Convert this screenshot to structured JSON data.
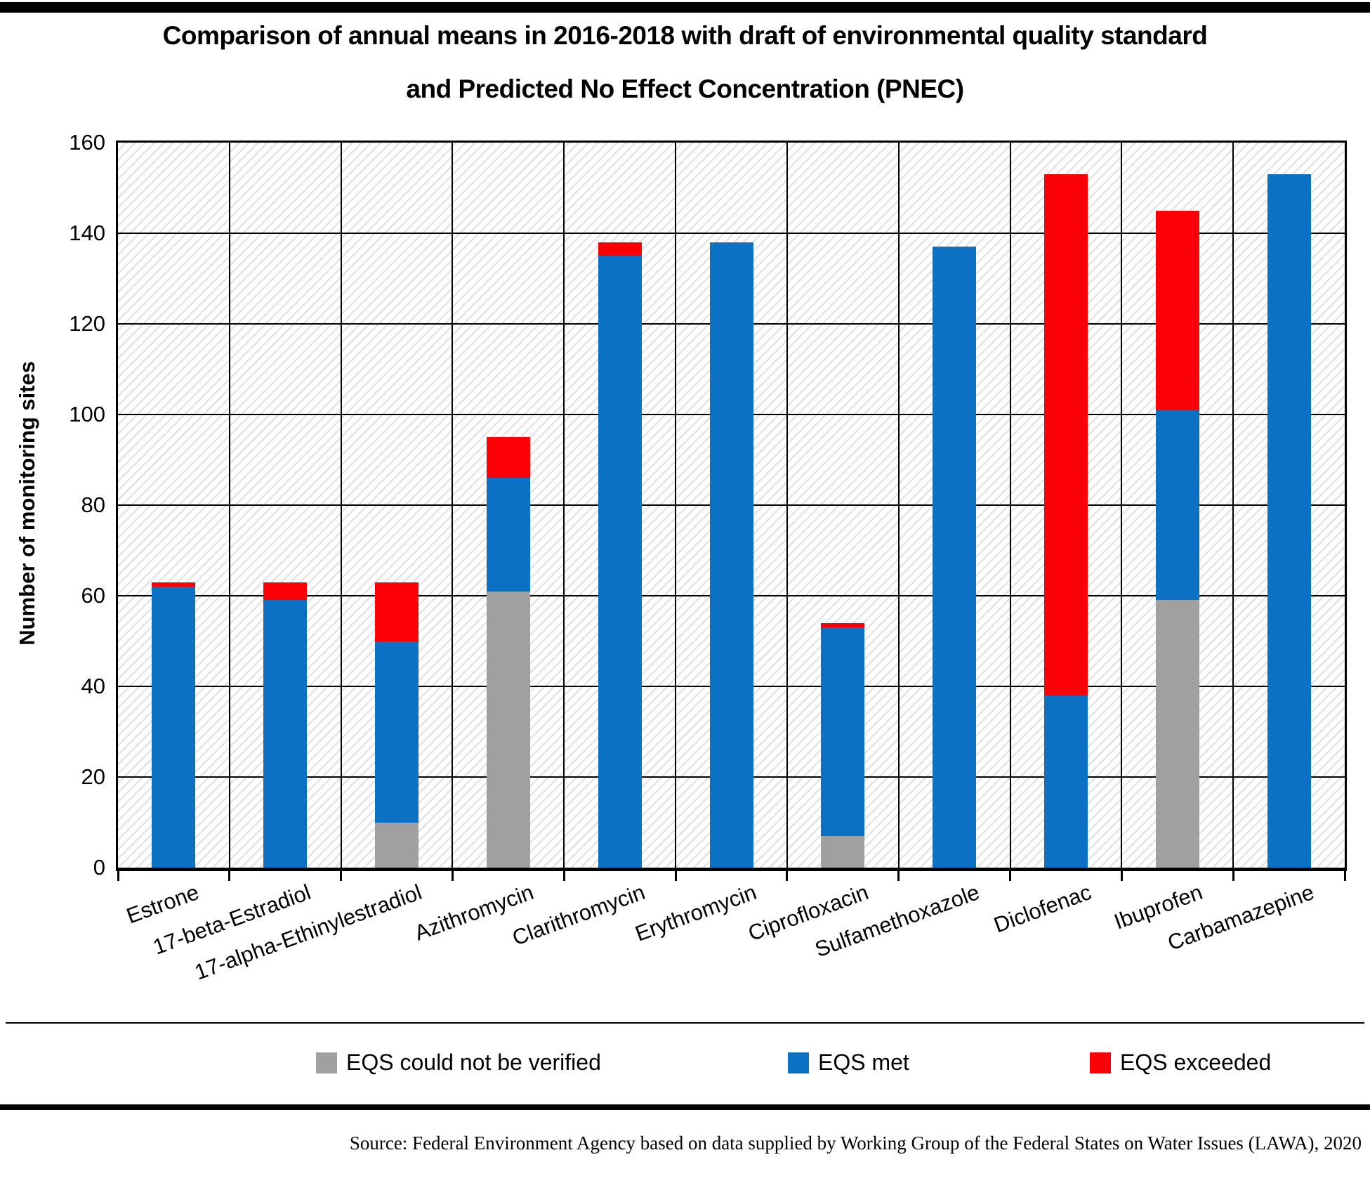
{
  "page": {
    "title_line1": "Comparison of annual means in 2016-2018 with draft of environmental quality standard",
    "title_line2": "and Predicted No Effect Concentration (PNEC)",
    "source": "Source: Federal Environment Agency based on data supplied by Working Group of the Federal States on Water Issues (LAWA), 2020"
  },
  "colors": {
    "eqs_not_verified": "#A0A0A0",
    "eqs_met": "#0C71C3",
    "eqs_exceeded": "#FB0006",
    "gridline": "#000000",
    "hatch_line": "#E4E4E4",
    "top_bar": "#000000"
  },
  "chart_data": {
    "type": "bar",
    "stacked": true,
    "title": "Comparison of annual means in 2016-2018 with draft of environmental quality standard and Predicted No Effect Concentration (PNEC)",
    "xlabel": "",
    "ylabel": "Number of monitoring sites",
    "ylim": [
      0,
      160
    ],
    "yticks": [
      0,
      20,
      40,
      60,
      80,
      100,
      120,
      140,
      160
    ],
    "grid": true,
    "legend_position": "bottom",
    "categories": [
      "Estrone",
      "17-beta-Estradiol",
      "17-alpha-Ethinylestradiol",
      "Azithromycin",
      "Clarithromycin",
      "Erythromycin",
      "Ciprofloxacin",
      "Sulfamethoxazole",
      "Diclofenac",
      "Ibuprofen",
      "Carbamazepine"
    ],
    "series": [
      {
        "name": "EQS could not be verified",
        "color_key": "eqs_not_verified",
        "values": [
          0,
          0,
          10,
          61,
          0,
          0,
          7,
          0,
          0,
          59,
          0
        ]
      },
      {
        "name": "EQS met",
        "color_key": "eqs_met",
        "values": [
          62,
          59,
          40,
          25,
          135,
          138,
          46,
          137,
          38,
          42,
          153
        ]
      },
      {
        "name": "EQS exceeded",
        "color_key": "eqs_exceeded",
        "values": [
          1,
          4,
          13,
          9,
          3,
          0,
          1,
          0,
          115,
          44,
          0
        ]
      }
    ],
    "totals": [
      63,
      63,
      63,
      95,
      138,
      138,
      54,
      137,
      153,
      145,
      153
    ]
  },
  "legend": {
    "items": [
      {
        "label": "EQS could not be verified",
        "color_key": "eqs_not_verified"
      },
      {
        "label": "EQS met",
        "color_key": "eqs_met"
      },
      {
        "label": "EQS exceeded",
        "color_key": "eqs_exceeded"
      }
    ]
  }
}
